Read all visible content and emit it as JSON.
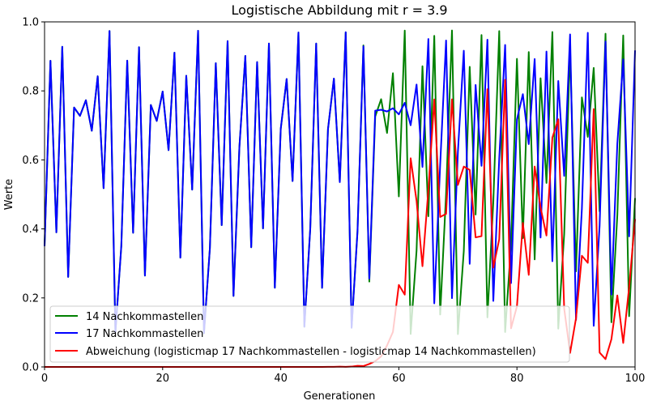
{
  "chart_data": {
    "type": "line",
    "title": "Logistische Abbildung mit r = 3.9",
    "xlabel": "Generationen",
    "ylabel": "Werte",
    "xlim": [
      0,
      100
    ],
    "ylim": [
      0,
      1
    ],
    "xticks": [
      0,
      20,
      40,
      60,
      80,
      100
    ],
    "yticks": [
      0.0,
      0.2,
      0.4,
      0.6,
      0.8,
      1.0
    ],
    "xtick_labels": [
      "0",
      "20",
      "40",
      "60",
      "80",
      "100"
    ],
    "ytick_labels": [
      "0.0",
      "0.2",
      "0.4",
      "0.6",
      "0.8",
      "1.0"
    ],
    "legend_position": "lower-left",
    "r": 3.9,
    "x0": 0.35,
    "generations": 100,
    "series": [
      {
        "name": "14 Nachkommastellen",
        "color": "#008000",
        "precision": 14,
        "description": "logistic map rounded to 14 decimals each step"
      },
      {
        "name": "17 Nachkommastellen",
        "color": "#0000ff",
        "precision": 17,
        "description": "logistic map rounded to 17 decimals each step"
      },
      {
        "name": "Abweichung (logisticmap 17 Nachkommastellen - logisticmap 14 Nachkommastellen)",
        "color": "#ff0000",
        "description": "absolute difference of the two series"
      }
    ]
  }
}
